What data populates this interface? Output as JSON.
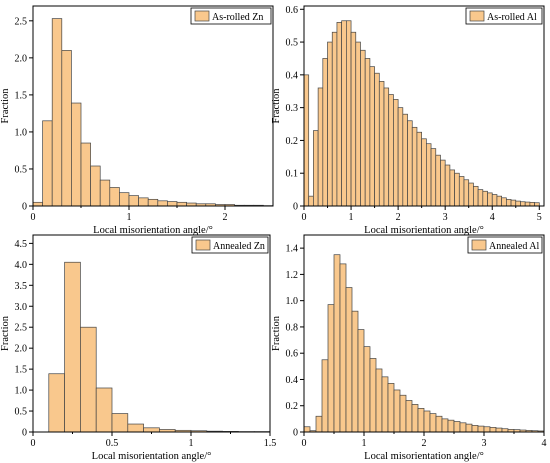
{
  "style": {
    "bar_fill": "#f9c88d",
    "bar_stroke": "#444444",
    "legend_fill": "#f9c88d"
  },
  "chart_data": [
    {
      "type": "bar",
      "legend": "As-rolled Zn",
      "xlabel": "Local misorientation angle/°",
      "ylabel": "Fraction",
      "xlim": [
        0,
        2.5
      ],
      "ylim": [
        0,
        2.7
      ],
      "xticks": [
        0,
        1,
        2
      ],
      "yticks": [
        0,
        0.5,
        1.0,
        1.5,
        2.0,
        2.5
      ],
      "bin_width": 0.1,
      "bins_start": [
        0,
        0.1,
        0.2,
        0.3,
        0.4,
        0.5,
        0.6,
        0.7,
        0.8,
        0.9,
        1.0,
        1.1,
        1.2,
        1.3,
        1.4,
        1.5,
        1.6,
        1.7,
        1.8,
        1.9,
        2.0,
        2.1,
        2.2,
        2.3,
        2.4
      ],
      "values": [
        0.05,
        1.15,
        2.53,
        2.1,
        1.39,
        0.85,
        0.54,
        0.35,
        0.25,
        0.18,
        0.14,
        0.11,
        0.09,
        0.07,
        0.06,
        0.05,
        0.04,
        0.03,
        0.03,
        0.02,
        0.02,
        0.01,
        0.01,
        0.01,
        0.005
      ]
    },
    {
      "type": "bar",
      "legend": "As-rolled Al",
      "xlabel": "Local misorientation angle/°",
      "ylabel": "Fraction",
      "xlim": [
        0,
        5.1
      ],
      "ylim": [
        0,
        0.61
      ],
      "xticks": [
        0,
        1,
        2,
        3,
        4,
        5
      ],
      "yticks": [
        0,
        0.1,
        0.2,
        0.3,
        0.4,
        0.5,
        0.6
      ],
      "bin_width": 0.1,
      "bins_start": [
        0,
        0.1,
        0.2,
        0.3,
        0.4,
        0.5,
        0.6,
        0.7,
        0.8,
        0.9,
        1.0,
        1.1,
        1.2,
        1.3,
        1.4,
        1.5,
        1.6,
        1.7,
        1.8,
        1.9,
        2.0,
        2.1,
        2.2,
        2.3,
        2.4,
        2.5,
        2.6,
        2.7,
        2.8,
        2.9,
        3.0,
        3.1,
        3.2,
        3.3,
        3.4,
        3.5,
        3.6,
        3.7,
        3.8,
        3.9,
        4.0,
        4.1,
        4.2,
        4.3,
        4.4,
        4.5,
        4.6,
        4.7,
        4.8,
        4.9
      ],
      "values": [
        0.4,
        0.03,
        0.23,
        0.36,
        0.45,
        0.5,
        0.53,
        0.56,
        0.565,
        0.565,
        0.53,
        0.5,
        0.475,
        0.45,
        0.425,
        0.405,
        0.38,
        0.36,
        0.34,
        0.325,
        0.3,
        0.28,
        0.26,
        0.24,
        0.225,
        0.205,
        0.19,
        0.175,
        0.155,
        0.14,
        0.125,
        0.11,
        0.1,
        0.09,
        0.08,
        0.07,
        0.06,
        0.05,
        0.045,
        0.04,
        0.035,
        0.03,
        0.025,
        0.02,
        0.018,
        0.015,
        0.013,
        0.012,
        0.011,
        0.01
      ]
    },
    {
      "type": "bar",
      "legend": "Annealed Zn",
      "xlabel": "Local misorientation angle/°",
      "ylabel": "Fraction",
      "xlim": [
        0,
        1.5
      ],
      "ylim": [
        0,
        4.7
      ],
      "xticks": [
        0,
        0.5,
        1.0,
        1.5
      ],
      "yticks": [
        0,
        0.5,
        1.0,
        1.5,
        2.0,
        2.5,
        3.0,
        3.5,
        4.0,
        4.5
      ],
      "bin_width": 0.1,
      "bins_start": [
        0.1,
        0.2,
        0.3,
        0.4,
        0.5,
        0.6,
        0.7,
        0.8,
        0.9,
        1.0,
        1.1,
        1.2,
        1.3,
        1.4
      ],
      "values": [
        1.39,
        4.05,
        2.5,
        1.05,
        0.44,
        0.19,
        0.1,
        0.06,
        0.04,
        0.03,
        0.02,
        0.015,
        0.01,
        0.01
      ]
    },
    {
      "type": "bar",
      "legend": "Annealed Al",
      "xlabel": "Local misorientation angle/°",
      "ylabel": "Fraction",
      "xlim": [
        0,
        4
      ],
      "ylim": [
        0,
        1.5
      ],
      "xticks": [
        0,
        1,
        2,
        3,
        4
      ],
      "yticks": [
        0,
        0.2,
        0.4,
        0.6,
        0.8,
        1.0,
        1.2,
        1.4
      ],
      "bin_width": 0.1,
      "bins_start": [
        0,
        0.1,
        0.2,
        0.3,
        0.4,
        0.5,
        0.6,
        0.7,
        0.8,
        0.9,
        1.0,
        1.1,
        1.2,
        1.3,
        1.4,
        1.5,
        1.6,
        1.7,
        1.8,
        1.9,
        2.0,
        2.1,
        2.2,
        2.3,
        2.4,
        2.5,
        2.6,
        2.7,
        2.8,
        2.9,
        3.0,
        3.1,
        3.2,
        3.3,
        3.4,
        3.5,
        3.6,
        3.7,
        3.8,
        3.9
      ],
      "values": [
        0.04,
        0.01,
        0.12,
        0.55,
        0.97,
        1.35,
        1.28,
        1.1,
        0.92,
        0.78,
        0.65,
        0.56,
        0.48,
        0.42,
        0.37,
        0.32,
        0.28,
        0.24,
        0.21,
        0.18,
        0.16,
        0.14,
        0.12,
        0.1,
        0.09,
        0.08,
        0.07,
        0.06,
        0.05,
        0.045,
        0.04,
        0.035,
        0.03,
        0.025,
        0.02,
        0.018,
        0.015,
        0.012,
        0.01,
        0.008
      ]
    }
  ]
}
